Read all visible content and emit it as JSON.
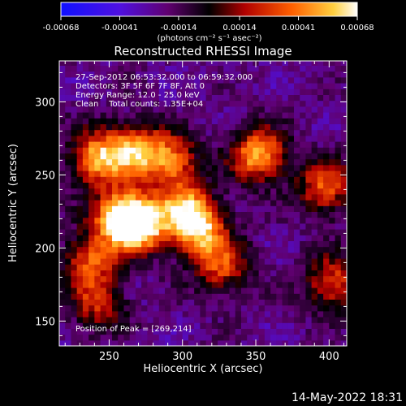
{
  "colorbar": {
    "tick_labels": [
      "-0.00068",
      "-0.00041",
      "-0.00014",
      "0.00014",
      "0.00041",
      "0.00068"
    ],
    "tick_values": [
      -0.00068,
      -0.00041,
      -0.00014,
      0.00014,
      0.00041,
      0.00068
    ],
    "range": [
      -0.00068,
      0.00068
    ],
    "units_label": "(photons cm⁻² s⁻¹ asec⁻²)",
    "colors": [
      "#1010ff",
      "#5010e0",
      "#600070",
      "#000000",
      "#b00000",
      "#ff6000",
      "#ffd040",
      "#ffffff"
    ]
  },
  "chart_data": {
    "type": "heatmap",
    "title": "Reconstructed RHESSI Image",
    "xlabel": "Heliocentric X (arcsec)",
    "ylabel": "Heliocentric Y (arcsec)",
    "xlim": [
      216,
      412
    ],
    "ylim": [
      133,
      328
    ],
    "x_ticks": [
      250,
      300,
      350,
      400
    ],
    "y_ticks": [
      150,
      200,
      250,
      300
    ],
    "info_lines": [
      "27-Sep-2012 06:53:32.000 to 06:59:32.000",
      "Detectors: 3F 5F 6F 7F 8F, Att 0",
      "Energy Range: 12.0 - 25.0 keV",
      "Clean    Total counts: 1.35E+04"
    ],
    "peak_label": "Position of Peak = [269,214]",
    "peak": [
      269,
      214
    ],
    "sources": [
      {
        "x": 269,
        "y": 214,
        "flux": 0.00068
      },
      {
        "x": 255,
        "y": 220,
        "flux": 0.00055
      },
      {
        "x": 240,
        "y": 260,
        "flux": 0.00048
      },
      {
        "x": 265,
        "y": 265,
        "flux": 0.00045
      },
      {
        "x": 290,
        "y": 258,
        "flux": 0.0004
      },
      {
        "x": 350,
        "y": 262,
        "flux": 0.00052
      },
      {
        "x": 310,
        "y": 210,
        "flux": 0.00045
      },
      {
        "x": 300,
        "y": 225,
        "flux": 0.0004
      },
      {
        "x": 235,
        "y": 190,
        "flux": 0.00032
      },
      {
        "x": 325,
        "y": 185,
        "flux": 0.00028
      },
      {
        "x": 395,
        "y": 240,
        "flux": 0.00035
      },
      {
        "x": 400,
        "y": 175,
        "flux": 0.0003
      },
      {
        "x": 240,
        "y": 160,
        "flux": 0.00022
      }
    ]
  },
  "footer": {
    "date": "14-May-2022 18:31"
  }
}
